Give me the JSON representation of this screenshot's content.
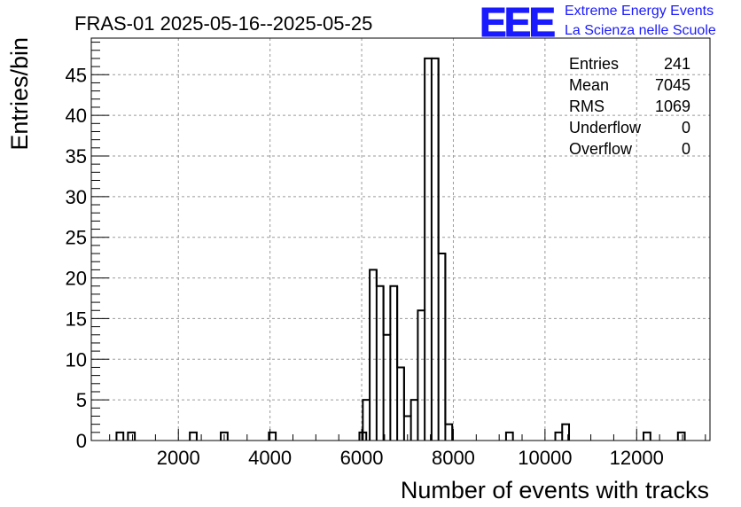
{
  "chart_data": {
    "type": "bar",
    "title": "FRAS-01 2025-05-16--2025-05-25",
    "xlabel": "Number of events with tracks",
    "ylabel": "Entries/bin",
    "xlim": [
      100,
      13600
    ],
    "ylim": [
      0,
      49.5
    ],
    "x_ticks": [
      2000,
      4000,
      6000,
      8000,
      10000,
      12000
    ],
    "y_ticks": [
      0,
      5,
      10,
      15,
      20,
      25,
      30,
      35,
      40,
      45
    ],
    "grid": true,
    "bin_width": 150,
    "bins": [
      {
        "x": 725,
        "y": 1
      },
      {
        "x": 975,
        "y": 1
      },
      {
        "x": 2325,
        "y": 1
      },
      {
        "x": 3000,
        "y": 1
      },
      {
        "x": 4050,
        "y": 1
      },
      {
        "x": 6025,
        "y": 1
      },
      {
        "x": 6100,
        "y": 5
      },
      {
        "x": 6250,
        "y": 21
      },
      {
        "x": 6400,
        "y": 19
      },
      {
        "x": 6550,
        "y": 13
      },
      {
        "x": 6700,
        "y": 19
      },
      {
        "x": 6850,
        "y": 9
      },
      {
        "x": 7000,
        "y": 3
      },
      {
        "x": 7150,
        "y": 5
      },
      {
        "x": 7300,
        "y": 16
      },
      {
        "x": 7450,
        "y": 47
      },
      {
        "x": 7600,
        "y": 47
      },
      {
        "x": 7750,
        "y": 23
      },
      {
        "x": 7900,
        "y": 2
      },
      {
        "x": 9225,
        "y": 1
      },
      {
        "x": 10300,
        "y": 1
      },
      {
        "x": 10450,
        "y": 2
      },
      {
        "x": 12225,
        "y": 1
      },
      {
        "x": 12975,
        "y": 1
      }
    ],
    "stats": [
      {
        "label": "Entries",
        "value": "241"
      },
      {
        "label": "Mean",
        "value": "7045"
      },
      {
        "label": "RMS",
        "value": "1069"
      },
      {
        "label": "Underflow",
        "value": "0"
      },
      {
        "label": "Overflow",
        "value": "0"
      }
    ],
    "legend_position": "top-right"
  },
  "logo": {
    "mark": "EEE",
    "line1": "Extreme Energy Events",
    "line2": "La Scienza nelle Scuole"
  },
  "colors": {
    "histogram": "#000000",
    "grid": "#9a9a9a",
    "logo": "#1a1aff"
  }
}
